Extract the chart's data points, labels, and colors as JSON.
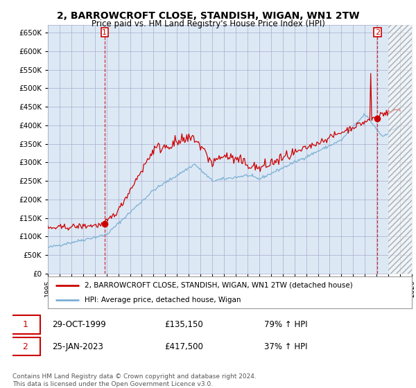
{
  "title": "2, BARROWCROFT CLOSE, STANDISH, WIGAN, WN1 2TW",
  "subtitle": "Price paid vs. HM Land Registry's House Price Index (HPI)",
  "red_line_label": "2, BARROWCROFT CLOSE, STANDISH, WIGAN, WN1 2TW (detached house)",
  "blue_line_label": "HPI: Average price, detached house, Wigan",
  "transaction1_date": "29-OCT-1999",
  "transaction1_price": "£135,150",
  "transaction1_hpi": "79% ↑ HPI",
  "transaction2_date": "25-JAN-2023",
  "transaction2_price": "£417,500",
  "transaction2_hpi": "37% ↑ HPI",
  "footnote": "Contains HM Land Registry data © Crown copyright and database right 2024.\nThis data is licensed under the Open Government Licence v3.0.",
  "ylim": [
    0,
    670000
  ],
  "ytick_values": [
    0,
    50000,
    100000,
    150000,
    200000,
    250000,
    300000,
    350000,
    400000,
    450000,
    500000,
    550000,
    600000,
    650000
  ],
  "background_color": "#ffffff",
  "plot_bg_color": "#dce9f5",
  "grid_color": "#aaaacc",
  "red_color": "#cc0000",
  "blue_color": "#7bafd4",
  "marker1_x": 1999.83,
  "marker1_y": 135150,
  "marker2_x": 2023.07,
  "marker2_y": 417500,
  "xlim": [
    1995,
    2026
  ],
  "xtick_years": [
    1995,
    1996,
    1997,
    1998,
    1999,
    2000,
    2001,
    2002,
    2003,
    2004,
    2005,
    2006,
    2007,
    2008,
    2009,
    2010,
    2011,
    2012,
    2013,
    2014,
    2015,
    2016,
    2017,
    2018,
    2019,
    2020,
    2021,
    2022,
    2023,
    2024,
    2025,
    2026
  ]
}
